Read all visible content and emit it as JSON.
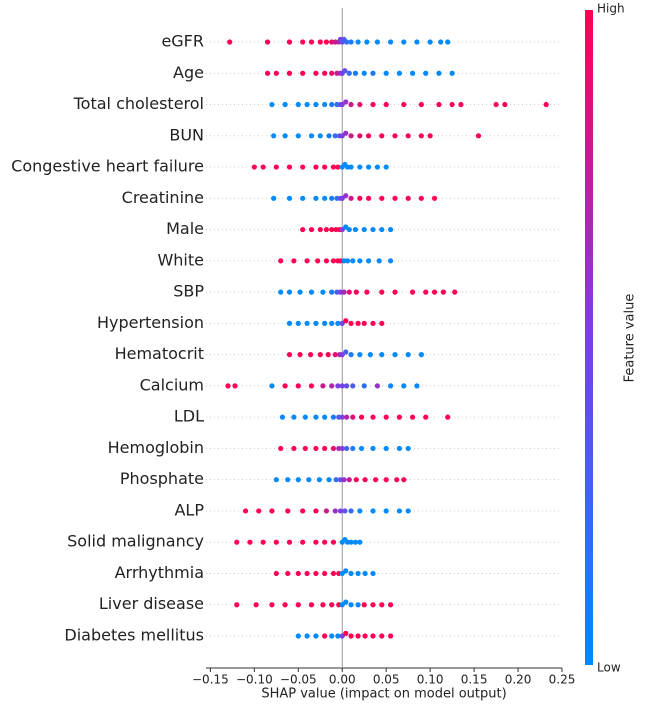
{
  "chart_data": {
    "type": "beeswarm",
    "xlabel": "SHAP value (impact on model output)",
    "xlim": [
      -0.155,
      0.25
    ],
    "xticks": [
      {
        "value": -0.15,
        "label": "−0.15"
      },
      {
        "value": -0.1,
        "label": "−0.10"
      },
      {
        "value": -0.05,
        "label": "−0.05"
      },
      {
        "value": 0,
        "label": "0.00"
      },
      {
        "value": 0.05,
        "label": "0.05"
      },
      {
        "value": 0.1,
        "label": "0.10"
      },
      {
        "value": 0.15,
        "label": "0.15"
      },
      {
        "value": 0.2,
        "label": "0.20"
      },
      {
        "value": 0.25,
        "label": "0.25"
      }
    ],
    "grid": true,
    "colormap": [
      "#008afb",
      "#7b3fe4",
      "#ff0052"
    ],
    "colorbar_label": "Feature value",
    "colorbar_high": "High",
    "colorbar_low": "Low",
    "features": [
      {
        "name": "eGFR",
        "shap": [
          -0.128,
          -0.085,
          -0.06,
          -0.045,
          -0.035,
          -0.025,
          -0.018,
          -0.012,
          -0.008,
          -0.004,
          -0.002,
          0,
          0.002,
          0.005,
          0.01,
          0.018,
          0.028,
          0.04,
          0.055,
          0.07,
          0.085,
          0.1,
          0.112,
          0.12
        ],
        "feature_value": [
          1,
          1,
          1,
          1,
          1,
          1,
          1,
          0.9,
          0.8,
          0.7,
          0.5,
          0.4,
          0.3,
          0.2,
          0.1,
          0,
          0,
          0,
          0,
          0,
          0,
          0,
          0,
          0
        ]
      },
      {
        "name": "Age",
        "shap": [
          -0.085,
          -0.075,
          -0.06,
          -0.045,
          -0.03,
          -0.02,
          -0.012,
          -0.006,
          -0.002,
          0,
          0.003,
          0.008,
          0.015,
          0.025,
          0.035,
          0.05,
          0.065,
          0.08,
          0.095,
          0.11,
          0.125
        ],
        "feature_value": [
          1,
          1,
          1,
          1,
          1,
          1,
          0.9,
          0.8,
          0.6,
          0.5,
          0.4,
          0.2,
          0.1,
          0,
          0.1,
          0,
          0,
          0,
          0,
          0,
          0
        ]
      },
      {
        "name": "Total cholesterol",
        "shap": [
          -0.08,
          -0.065,
          -0.05,
          -0.04,
          -0.03,
          -0.02,
          -0.012,
          -0.006,
          -0.002,
          0,
          0.004,
          0.01,
          0.02,
          0.035,
          0.05,
          0.07,
          0.09,
          0.11,
          0.125,
          0.135,
          0.175,
          0.185,
          0.232
        ],
        "feature_value": [
          0,
          0,
          0,
          0,
          0,
          0,
          0.1,
          0.2,
          0.4,
          0.5,
          0.6,
          0.8,
          0.9,
          1,
          1,
          1,
          1,
          1,
          1,
          1,
          1,
          1,
          1
        ]
      },
      {
        "name": "BUN",
        "shap": [
          -0.078,
          -0.065,
          -0.05,
          -0.035,
          -0.025,
          -0.015,
          -0.008,
          -0.003,
          0,
          0.004,
          0.01,
          0.02,
          0.03,
          0.045,
          0.06,
          0.075,
          0.09,
          0.1,
          0.155
        ],
        "feature_value": [
          0,
          0,
          0,
          0,
          0,
          0.1,
          0.2,
          0.4,
          0.5,
          0.6,
          0.8,
          0.9,
          1,
          1,
          1,
          1,
          1,
          1,
          1
        ]
      },
      {
        "name": "Congestive heart failure",
        "shap": [
          -0.1,
          -0.09,
          -0.075,
          -0.06,
          -0.045,
          -0.03,
          -0.02,
          -0.01,
          -0.005,
          0,
          0.003,
          0.006,
          0.01,
          0.02,
          0.03,
          0.04,
          0.05
        ],
        "feature_value": [
          1,
          1,
          1,
          1,
          1,
          1,
          1,
          1,
          1,
          0,
          0,
          0,
          0,
          0,
          0,
          0,
          0
        ]
      },
      {
        "name": "Creatinine",
        "shap": [
          -0.078,
          -0.06,
          -0.045,
          -0.03,
          -0.02,
          -0.012,
          -0.006,
          -0.002,
          0,
          0.004,
          0.01,
          0.02,
          0.03,
          0.045,
          0.06,
          0.075,
          0.09,
          0.105
        ],
        "feature_value": [
          0,
          0,
          0,
          0,
          0,
          0.1,
          0.2,
          0.4,
          0.5,
          0.6,
          0.8,
          1,
          1,
          1,
          1,
          1,
          1,
          1
        ]
      },
      {
        "name": "Male",
        "shap": [
          -0.045,
          -0.035,
          -0.025,
          -0.018,
          -0.012,
          -0.007,
          -0.003,
          0,
          0.004,
          0.008,
          0.015,
          0.025,
          0.035,
          0.045,
          0.055
        ],
        "feature_value": [
          1,
          1,
          1,
          1,
          1,
          1,
          1,
          0.5,
          0,
          0,
          0,
          0,
          0,
          0,
          0
        ]
      },
      {
        "name": "White",
        "shap": [
          -0.07,
          -0.055,
          -0.04,
          -0.028,
          -0.018,
          -0.01,
          -0.005,
          -0.002,
          0.002,
          0.006,
          0.012,
          0.02,
          0.03,
          0.042,
          0.055
        ],
        "feature_value": [
          1,
          1,
          1,
          1,
          1,
          1,
          1,
          1,
          0,
          0,
          0,
          0,
          0,
          0,
          0
        ]
      },
      {
        "name": "SBP",
        "shap": [
          -0.07,
          -0.06,
          -0.048,
          -0.035,
          -0.022,
          -0.012,
          -0.006,
          -0.002,
          0.002,
          0.008,
          0.016,
          0.028,
          0.045,
          0.06,
          0.08,
          0.095,
          0.105,
          0.115,
          0.128
        ],
        "feature_value": [
          0,
          0,
          0,
          0,
          0,
          0.1,
          0.3,
          0.5,
          0.7,
          0.9,
          1,
          1,
          1,
          1,
          1,
          1,
          1,
          1,
          1
        ]
      },
      {
        "name": "Hypertension",
        "shap": [
          -0.06,
          -0.05,
          -0.04,
          -0.03,
          -0.02,
          -0.012,
          -0.005,
          0,
          0.004,
          0.01,
          0.018,
          0.025,
          0.035,
          0.045
        ],
        "feature_value": [
          0,
          0,
          0,
          0,
          0,
          0,
          0,
          0.5,
          1,
          1,
          1,
          1,
          1,
          1
        ]
      },
      {
        "name": "Hematocrit",
        "shap": [
          -0.06,
          -0.048,
          -0.036,
          -0.025,
          -0.016,
          -0.008,
          -0.003,
          0,
          0.004,
          0.01,
          0.02,
          0.032,
          0.045,
          0.06,
          0.075,
          0.09
        ],
        "feature_value": [
          1,
          1,
          1,
          1,
          1,
          0.9,
          0.7,
          0.5,
          0.3,
          0.1,
          0,
          0,
          0,
          0,
          0,
          0
        ]
      },
      {
        "name": "Calcium",
        "shap": [
          -0.13,
          -0.122,
          -0.08,
          -0.065,
          -0.05,
          -0.035,
          -0.022,
          -0.012,
          -0.005,
          0,
          0.005,
          0.012,
          0.025,
          0.04,
          0.055,
          0.07,
          0.085
        ],
        "feature_value": [
          1,
          1,
          0,
          1,
          1,
          1,
          0.8,
          0.7,
          0.5,
          0.5,
          0.4,
          0.3,
          0.2,
          0.6,
          0,
          0,
          0
        ]
      },
      {
        "name": "LDL",
        "shap": [
          -0.068,
          -0.055,
          -0.042,
          -0.03,
          -0.02,
          -0.01,
          -0.004,
          0,
          0.005,
          0.012,
          0.022,
          0.035,
          0.05,
          0.065,
          0.08,
          0.095,
          0.12
        ],
        "feature_value": [
          0,
          0,
          0,
          0,
          0,
          0.1,
          0.3,
          0.5,
          0.7,
          0.9,
          1,
          1,
          1,
          1,
          1,
          1,
          1
        ]
      },
      {
        "name": "Hemoglobin",
        "shap": [
          -0.07,
          -0.055,
          -0.042,
          -0.03,
          -0.02,
          -0.01,
          -0.004,
          0,
          0.005,
          0.012,
          0.022,
          0.035,
          0.05,
          0.065,
          0.075
        ],
        "feature_value": [
          1,
          1,
          1,
          1,
          1,
          0.9,
          0.7,
          0.5,
          0.3,
          0.1,
          0,
          0,
          0,
          0,
          0
        ]
      },
      {
        "name": "Phosphate",
        "shap": [
          -0.075,
          -0.062,
          -0.05,
          -0.038,
          -0.026,
          -0.015,
          -0.007,
          -0.002,
          0.002,
          0.008,
          0.016,
          0.026,
          0.038,
          0.05,
          0.062,
          0.07
        ],
        "feature_value": [
          0,
          0,
          0,
          0,
          0,
          0,
          0.2,
          0.4,
          0.6,
          0.8,
          1,
          1,
          1,
          1,
          1,
          1
        ]
      },
      {
        "name": "ALP",
        "shap": [
          -0.11,
          -0.095,
          -0.08,
          -0.062,
          -0.045,
          -0.03,
          -0.018,
          -0.008,
          -0.002,
          0.003,
          0.01,
          0.02,
          0.035,
          0.05,
          0.065,
          0.075
        ],
        "feature_value": [
          1,
          1,
          1,
          1,
          1,
          1,
          0.8,
          0.6,
          0.5,
          0.4,
          0.2,
          0,
          0,
          0,
          0,
          0
        ]
      },
      {
        "name": "Solid malignancy",
        "shap": [
          -0.12,
          -0.105,
          -0.09,
          -0.075,
          -0.06,
          -0.045,
          -0.03,
          -0.02,
          -0.01,
          0,
          0.003,
          0.006,
          0.01,
          0.015,
          0.02
        ],
        "feature_value": [
          1,
          1,
          1,
          1,
          1,
          1,
          1,
          1,
          1,
          0,
          0,
          0,
          0,
          0,
          0
        ]
      },
      {
        "name": "Arrhythmia",
        "shap": [
          -0.075,
          -0.062,
          -0.05,
          -0.04,
          -0.03,
          -0.02,
          -0.01,
          -0.004,
          0,
          0.004,
          0.01,
          0.018,
          0.026,
          0.035
        ],
        "feature_value": [
          1,
          1,
          1,
          1,
          1,
          1,
          1,
          1,
          0,
          0,
          0,
          0,
          0,
          0
        ]
      },
      {
        "name": "Liver disease",
        "shap": [
          -0.12,
          -0.098,
          -0.08,
          -0.065,
          -0.05,
          -0.035,
          -0.022,
          -0.012,
          -0.004,
          0,
          0.004,
          0.01,
          0.018,
          0.025,
          0.035,
          0.045,
          0.055
        ],
        "feature_value": [
          1,
          1,
          1,
          1,
          1,
          1,
          1,
          1,
          1,
          0,
          0,
          0,
          0,
          1,
          1,
          1,
          1
        ]
      },
      {
        "name": "Diabetes mellitus",
        "shap": [
          -0.05,
          -0.04,
          -0.03,
          -0.02,
          -0.012,
          -0.005,
          0,
          0.004,
          0.01,
          0.018,
          0.026,
          0.035,
          0.045,
          0.055
        ],
        "feature_value": [
          0,
          0,
          0,
          1,
          0,
          0,
          0.5,
          1,
          1,
          1,
          1,
          1,
          1,
          1
        ]
      }
    ]
  }
}
